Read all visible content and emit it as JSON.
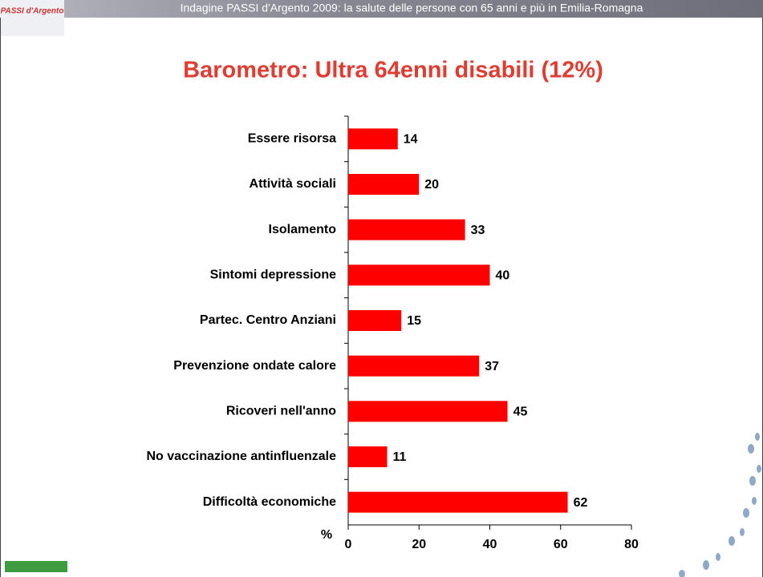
{
  "header": {
    "logo": "PASSI d'Argento",
    "text": "Indagine PASSI d'Argento 2009: la salute delle persone con 65 anni e più in Emilia-Romagna"
  },
  "chart_data": {
    "type": "bar",
    "orientation": "horizontal",
    "title": "Barometro: Ultra 64enni disabili  (12%)",
    "categories": [
      "Essere risorsa",
      "Attività sociali",
      "Isolamento",
      "Sintomi depressione",
      "Partec. Centro Anziani",
      "Prevenzione ondate calore",
      "Ricoveri nell'anno",
      "No vaccinazione antinfluenzale",
      "Difficoltà economiche"
    ],
    "values": [
      14,
      20,
      33,
      40,
      15,
      37,
      45,
      11,
      62
    ],
    "color": "#ff0000",
    "x_label": "%",
    "xlim": [
      0,
      80
    ],
    "xticks": [
      0,
      20,
      40,
      60,
      80
    ],
    "grid": false
  }
}
